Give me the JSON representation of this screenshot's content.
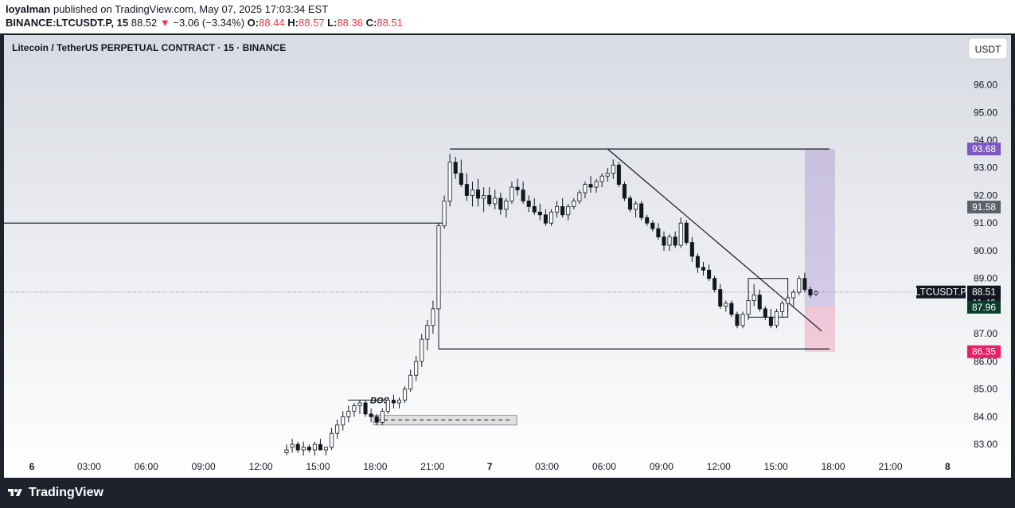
{
  "header": {
    "user": "loyalman",
    "published_text": " published on TradingView.com, May 07, 2025 17:03:34 EST",
    "symbol_tf": "BINANCE:LTCUSDT.P, 15",
    "last_price": "88.52",
    "change_arrow": "▼",
    "change": "−3.06 (−3.34%)",
    "o_label": "O:",
    "o_value": "88.44",
    "h_label": "H:",
    "h_value": "88.57",
    "l_label": "L:",
    "l_value": "88.36",
    "c_label": "C:",
    "c_value": "88.51"
  },
  "chart_title": "Litecoin / TetherUS PERPETUAL CONTRACT · 15 · BINANCE",
  "currency_button": "USDT",
  "colors": {
    "background_top": "#d8dbe2",
    "background_bottom": "#ffffff",
    "purple": "#7e57c2",
    "pink": "#e91e63",
    "dark_green": "#0b3d2e",
    "grey_label": "#5d606b"
  },
  "price_labels": {
    "entry": "93.68",
    "level": "91.58",
    "symbol": "LTCUSDT.P",
    "current": "88.51",
    "countdown": "11:46",
    "stop": "87.96",
    "target": "86.35"
  },
  "annotations": {
    "bos": "BOS"
  },
  "footer": {
    "brand": "TradingView"
  },
  "chart_data": {
    "type": "candlestick",
    "timeframe": "15",
    "y_ticks": [
      "96.00",
      "95.00",
      "94.00",
      "93.00",
      "92.00",
      "91.00",
      "90.00",
      "89.00",
      "88.00",
      "87.00",
      "86.00",
      "85.00",
      "84.00",
      "83.00"
    ],
    "x_ticks": [
      "6",
      "03:00",
      "06:00",
      "09:00",
      "12:00",
      "15:00",
      "18:00",
      "21:00",
      "7",
      "03:00",
      "06:00",
      "09:00",
      "12:00",
      "15:00",
      "18:00",
      "21:00",
      "8"
    ],
    "ylim": [
      82.6,
      97.8
    ],
    "candles": [
      [
        82.7,
        83.0,
        82.6,
        82.8
      ],
      [
        82.9,
        83.2,
        82.7,
        83.0
      ],
      [
        83.0,
        83.1,
        82.7,
        82.8
      ],
      [
        82.8,
        83.1,
        82.6,
        82.9
      ],
      [
        82.9,
        83.0,
        82.7,
        82.8
      ],
      [
        82.8,
        83.1,
        82.6,
        83.0
      ],
      [
        83.0,
        83.2,
        82.8,
        82.8
      ],
      [
        82.8,
        82.9,
        82.6,
        82.9
      ],
      [
        82.9,
        83.6,
        82.8,
        83.4
      ],
      [
        83.4,
        83.9,
        83.2,
        83.7
      ],
      [
        83.7,
        84.2,
        83.5,
        84.0
      ],
      [
        84.0,
        84.4,
        83.8,
        84.2
      ],
      [
        84.2,
        84.5,
        84.0,
        84.4
      ],
      [
        84.4,
        84.6,
        84.1,
        84.5
      ],
      [
        84.5,
        84.6,
        84.0,
        84.1
      ],
      [
        84.1,
        84.3,
        83.8,
        84.0
      ],
      [
        84.0,
        84.1,
        83.7,
        83.8
      ],
      [
        83.8,
        84.3,
        83.7,
        84.2
      ],
      [
        84.2,
        84.7,
        84.1,
        84.6
      ],
      [
        84.6,
        84.8,
        84.3,
        84.5
      ],
      [
        84.5,
        84.7,
        84.3,
        84.6
      ],
      [
        84.6,
        85.1,
        84.5,
        85.0
      ],
      [
        85.0,
        85.7,
        84.9,
        85.5
      ],
      [
        85.5,
        86.2,
        85.3,
        86.0
      ],
      [
        86.0,
        87.0,
        85.8,
        86.8
      ],
      [
        86.8,
        87.5,
        86.4,
        87.3
      ],
      [
        87.3,
        88.2,
        87.0,
        87.9
      ],
      [
        87.9,
        91.0,
        87.8,
        90.9
      ],
      [
        90.9,
        92.0,
        90.8,
        91.8
      ],
      [
        91.8,
        93.5,
        91.6,
        93.2
      ],
      [
        93.2,
        93.4,
        92.6,
        92.8
      ],
      [
        92.8,
        93.3,
        92.3,
        92.4
      ],
      [
        92.4,
        92.8,
        91.8,
        92.0
      ],
      [
        92.0,
        92.5,
        91.6,
        92.2
      ],
      [
        92.2,
        92.6,
        91.6,
        91.9
      ],
      [
        91.9,
        92.3,
        91.4,
        92.0
      ],
      [
        92.0,
        92.3,
        91.6,
        91.7
      ],
      [
        91.7,
        92.2,
        91.5,
        91.9
      ],
      [
        91.9,
        92.1,
        91.3,
        91.5
      ],
      [
        91.5,
        91.9,
        91.2,
        91.8
      ],
      [
        91.8,
        92.5,
        91.7,
        92.3
      ],
      [
        92.3,
        92.6,
        92.0,
        92.2
      ],
      [
        92.2,
        92.5,
        91.7,
        91.8
      ],
      [
        91.8,
        92.0,
        91.4,
        91.6
      ],
      [
        91.6,
        91.9,
        91.3,
        91.4
      ],
      [
        91.4,
        91.7,
        91.1,
        91.3
      ],
      [
        91.3,
        91.5,
        90.9,
        91.0
      ],
      [
        91.0,
        91.5,
        90.9,
        91.4
      ],
      [
        91.4,
        91.8,
        91.2,
        91.6
      ],
      [
        91.6,
        91.9,
        91.2,
        91.3
      ],
      [
        91.3,
        91.7,
        91.1,
        91.6
      ],
      [
        91.6,
        91.9,
        91.5,
        91.8
      ],
      [
        91.8,
        92.2,
        91.7,
        92.1
      ],
      [
        92.1,
        92.5,
        91.9,
        92.4
      ],
      [
        92.4,
        92.7,
        92.1,
        92.3
      ],
      [
        92.3,
        92.6,
        92.1,
        92.5
      ],
      [
        92.5,
        92.8,
        92.3,
        92.7
      ],
      [
        92.7,
        93.0,
        92.5,
        92.8
      ],
      [
        92.8,
        93.3,
        92.6,
        93.1
      ],
      [
        93.1,
        93.2,
        92.3,
        92.4
      ],
      [
        92.4,
        92.5,
        91.8,
        91.9
      ],
      [
        91.9,
        92.0,
        91.4,
        91.5
      ],
      [
        91.5,
        91.8,
        91.2,
        91.7
      ],
      [
        91.7,
        91.8,
        91.1,
        91.2
      ],
      [
        91.2,
        91.3,
        90.9,
        91.0
      ],
      [
        91.0,
        91.1,
        90.7,
        90.8
      ],
      [
        90.8,
        91.0,
        90.4,
        90.5
      ],
      [
        90.5,
        90.7,
        90.0,
        90.2
      ],
      [
        90.2,
        90.6,
        90.0,
        90.5
      ],
      [
        90.5,
        90.7,
        90.1,
        90.2
      ],
      [
        90.2,
        91.2,
        90.1,
        91.0
      ],
      [
        91.0,
        91.1,
        90.2,
        90.3
      ],
      [
        90.3,
        90.5,
        89.6,
        89.8
      ],
      [
        89.8,
        89.9,
        89.2,
        89.4
      ],
      [
        89.4,
        89.6,
        89.1,
        89.3
      ],
      [
        89.3,
        89.5,
        88.9,
        89.0
      ],
      [
        89.0,
        89.1,
        88.5,
        88.6
      ],
      [
        88.6,
        88.8,
        87.9,
        88.0
      ],
      [
        88.0,
        88.2,
        87.8,
        88.1
      ],
      [
        88.1,
        88.2,
        87.6,
        87.7
      ],
      [
        87.7,
        87.8,
        87.2,
        87.3
      ],
      [
        87.3,
        87.8,
        87.2,
        87.7
      ],
      [
        87.7,
        88.3,
        87.5,
        88.2
      ],
      [
        88.2,
        88.8,
        88.0,
        88.4
      ],
      [
        88.4,
        88.6,
        87.8,
        87.9
      ],
      [
        87.9,
        88.0,
        87.5,
        87.6
      ],
      [
        87.6,
        87.9,
        87.2,
        87.3
      ],
      [
        87.3,
        87.9,
        87.2,
        87.8
      ],
      [
        87.8,
        88.2,
        87.6,
        88.1
      ],
      [
        88.1,
        88.4,
        87.8,
        88.3
      ],
      [
        88.3,
        88.6,
        88.0,
        88.5
      ],
      [
        88.5,
        89.1,
        88.4,
        89.0
      ],
      [
        89.0,
        89.2,
        88.5,
        88.6
      ],
      [
        88.6,
        88.7,
        88.3,
        88.4
      ],
      [
        88.44,
        88.57,
        88.36,
        88.51
      ]
    ],
    "lines": [
      {
        "name": "range-high",
        "from_index": 29,
        "to_index": 95,
        "price": 93.68
      },
      {
        "name": "prev-level",
        "from_index": 0,
        "to_index": 27,
        "price": 91.0
      },
      {
        "name": "range-low",
        "from_index": 27,
        "to_index": 95,
        "price": 86.45
      },
      {
        "name": "trendline",
        "from_index": 57,
        "from_price": 93.68,
        "to_index": 95,
        "to_price": 87.1
      }
    ],
    "position": {
      "entry": 88.0,
      "target": 93.68,
      "stop": 86.35
    }
  }
}
